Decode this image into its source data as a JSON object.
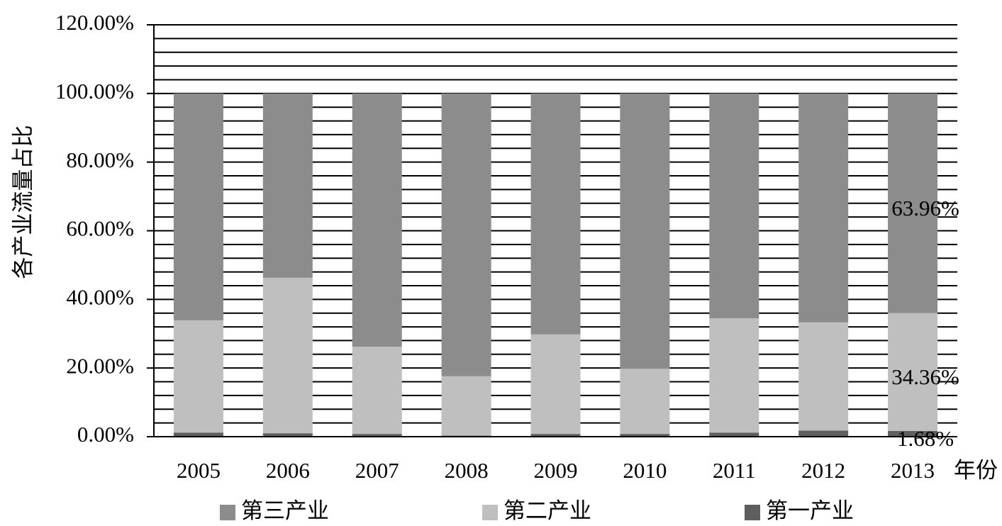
{
  "chart_data": {
    "type": "stacked_bar",
    "y_label": "各产业流量占比",
    "x_label": "年份",
    "categories": [
      "2005",
      "2006",
      "2007",
      "2008",
      "2009",
      "2010",
      "2011",
      "2012",
      "2013"
    ],
    "series": [
      {
        "name": "第三产业",
        "color": "#8c8c8c",
        "values": [
          66.1,
          53.7,
          73.8,
          82.4,
          70.2,
          80.2,
          65.5,
          66.7,
          63.96
        ],
        "value_labels": [
          null,
          null,
          null,
          null,
          null,
          null,
          null,
          null,
          "63.96%"
        ]
      },
      {
        "name": "第二产业",
        "color": "#bfbfbf",
        "values": [
          32.7,
          45.3,
          25.4,
          17.3,
          29.0,
          19.0,
          33.3,
          31.5,
          34.36
        ],
        "value_labels": [
          null,
          null,
          null,
          null,
          null,
          null,
          null,
          null,
          "34.36%"
        ]
      },
      {
        "name": "第一产业",
        "color": "#5f5f5f",
        "values": [
          1.2,
          1.0,
          0.8,
          0.3,
          0.8,
          0.8,
          1.2,
          1.8,
          1.68
        ],
        "value_labels": [
          null,
          null,
          null,
          null,
          null,
          null,
          null,
          null,
          "1.68%"
        ]
      }
    ],
    "ylim": [
      0,
      120
    ],
    "yticks": [
      {
        "value": 0,
        "label": "0.00%"
      },
      {
        "value": 20,
        "label": "20.00%"
      },
      {
        "value": 40,
        "label": "40.00%"
      },
      {
        "value": 60,
        "label": "60.00%"
      },
      {
        "value": 80,
        "label": "80.00%"
      },
      {
        "value": 100,
        "label": "100.00%"
      },
      {
        "value": 120,
        "label": "120.00%"
      }
    ],
    "minor_yticks": [
      4,
      8,
      12,
      16,
      24,
      28,
      32,
      36,
      44,
      48,
      52,
      56,
      64,
      68,
      72,
      76,
      84,
      88,
      92,
      96,
      104,
      108,
      112,
      116
    ],
    "grid": true,
    "legend": "bottom"
  }
}
